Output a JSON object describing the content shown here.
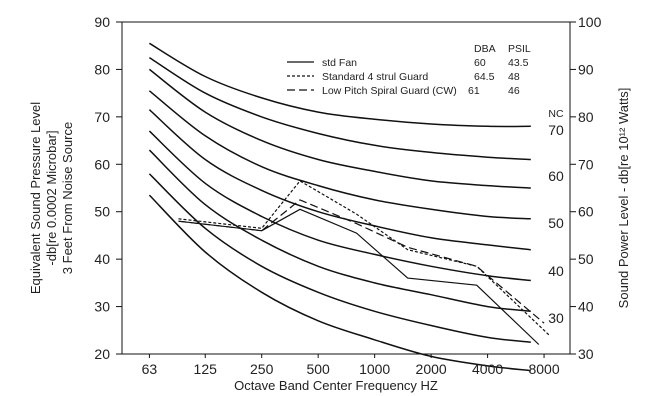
{
  "chart_data": {
    "type": "line",
    "x_scale": "log",
    "x_ticks": [
      "63",
      "125",
      "250",
      "500",
      "1000",
      "2000",
      "4000",
      "8000"
    ],
    "x_tick_values": [
      63,
      125,
      250,
      500,
      1000,
      2000,
      4000,
      8000
    ],
    "xlim": [
      45,
      11000
    ],
    "xlabel": "Octave Band Center Frequency HZ",
    "ylabel_left_lines": [
      "Equivalent Sound Pressure Level",
      "-db[re 0.0002 Microbar]",
      "3 Feet From Noise Source"
    ],
    "ylabel_right": "Sound Power Level - db[re 10¹² Watts]",
    "ylim_left": [
      20,
      90
    ],
    "y_ticks_left": [
      20,
      30,
      40,
      50,
      60,
      70,
      80,
      90
    ],
    "ylim_right": [
      30,
      100
    ],
    "y_ticks_right": [
      30,
      40,
      50,
      60,
      70,
      80,
      90,
      100
    ],
    "grid": false,
    "legend": {
      "placement": "top-right",
      "column_headers": [
        "DBA",
        "PSIL"
      ],
      "entries": [
        {
          "label": "std Fan",
          "dba": "60",
          "psil": "43.5",
          "style": "solid"
        },
        {
          "label": "Standard 4 strul Guard",
          "dba": "64.5",
          "psil": "48",
          "style": "dotted"
        },
        {
          "label": "Low Pitch Spiral Guard (CW)",
          "dba": "61",
          "psil": "46",
          "style": "dashed"
        }
      ]
    },
    "nc_header": "NC",
    "nc_labels": [
      "70",
      "60",
      "50",
      "40",
      "30"
    ],
    "nc_curves": [
      {
        "x": [
          63,
          125,
          250,
          500,
          1000,
          2000,
          4000,
          6800
        ],
        "y": [
          53.5,
          41.5,
          33.0,
          27.0,
          23.0,
          19.5,
          17.5,
          16.5
        ]
      },
      {
        "x": [
          63,
          125,
          250,
          500,
          1000,
          2000,
          4000,
          6800
        ],
        "y": [
          58.0,
          46.5,
          38.5,
          33.0,
          29.0,
          26.0,
          23.5,
          22.5
        ]
      },
      {
        "x": [
          63,
          125,
          250,
          500,
          1000,
          2000,
          4000,
          6800
        ],
        "y": [
          63.0,
          51.5,
          44.0,
          38.5,
          35.0,
          32.5,
          30.0,
          29.0
        ]
      },
      {
        "x": [
          63,
          125,
          250,
          500,
          1000,
          2000,
          4000,
          6800
        ],
        "y": [
          67.0,
          56.0,
          49.0,
          44.0,
          41.0,
          38.5,
          36.5,
          35.5
        ]
      },
      {
        "x": [
          63,
          125,
          250,
          500,
          1000,
          2000,
          4000,
          6800
        ],
        "y": [
          71.5,
          61.0,
          54.5,
          50.0,
          47.0,
          44.5,
          43.0,
          42.0
        ]
      },
      {
        "x": [
          63,
          125,
          250,
          500,
          1000,
          2000,
          4000,
          6800
        ],
        "y": [
          75.5,
          66.0,
          59.5,
          55.5,
          52.5,
          50.5,
          49.0,
          48.5
        ]
      },
      {
        "x": [
          63,
          125,
          250,
          500,
          1000,
          2000,
          4000,
          6800
        ],
        "y": [
          80.0,
          71.0,
          65.0,
          61.0,
          58.5,
          56.5,
          55.5,
          55.0
        ]
      },
      {
        "x": [
          63,
          125,
          250,
          500,
          1000,
          2000,
          4000,
          6800
        ],
        "y": [
          82.5,
          75.0,
          70.0,
          66.5,
          64.0,
          62.5,
          61.5,
          61.0
        ]
      },
      {
        "x": [
          63,
          125,
          250,
          500,
          1000,
          2000,
          4000,
          6800
        ],
        "y": [
          85.5,
          78.5,
          74.0,
          71.0,
          69.5,
          68.5,
          68.0,
          68.0
        ]
      }
    ],
    "series": [
      {
        "name": "std Fan",
        "style": "solid",
        "x": [
          90,
          250,
          400,
          800,
          1500,
          3500,
          7500
        ],
        "y": [
          48,
          46,
          50.5,
          45.5,
          36,
          34.5,
          22
        ]
      },
      {
        "name": "Standard 4 strul Guard",
        "style": "dotted",
        "x": [
          90,
          250,
          400,
          800,
          1500,
          3500,
          8500
        ],
        "y": [
          48.5,
          46.5,
          56.5,
          49.5,
          42,
          38.5,
          24
        ]
      },
      {
        "name": "Low Pitch Spiral Guard (CW)",
        "style": "dashed",
        "x": [
          90,
          250,
          400,
          800,
          1500,
          3500,
          8000
        ],
        "y": [
          48,
          46,
          52.5,
          47.5,
          42.5,
          38.5,
          26.5
        ]
      }
    ]
  }
}
